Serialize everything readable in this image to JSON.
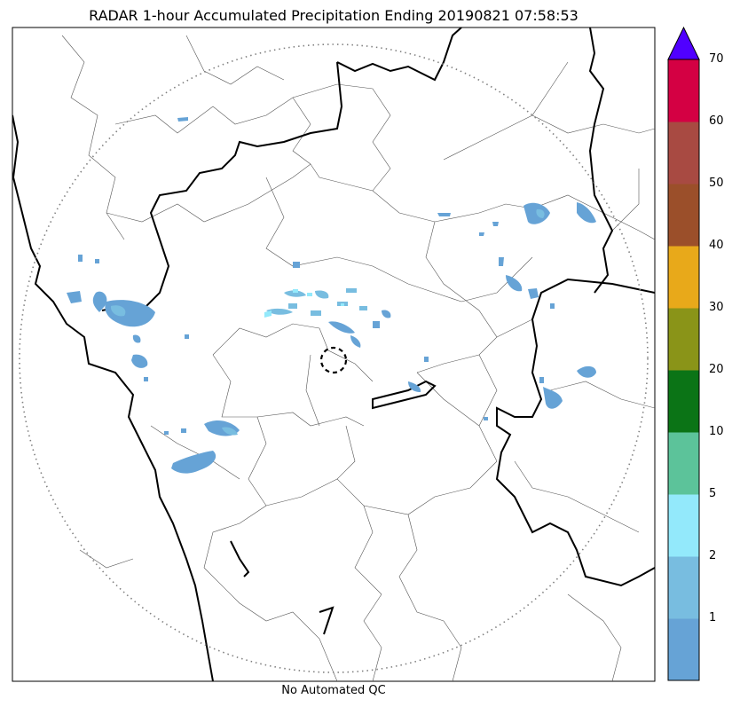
{
  "title": "RADAR 1-hour Accumulated Precipitation Ending 20190821 07:58:53",
  "footer": "No Automated QC",
  "colorbar": {
    "levels": [
      {
        "label": "",
        "color": "#66a3d6"
      },
      {
        "label": "1",
        "color": "#78bde0"
      },
      {
        "label": "2",
        "color": "#93e9fb"
      },
      {
        "label": "5",
        "color": "#5cc39a"
      },
      {
        "label": "10",
        "color": "#0b7416"
      },
      {
        "label": "20",
        "color": "#8a9418"
      },
      {
        "label": "30",
        "color": "#e8a91a"
      },
      {
        "label": "40",
        "color": "#9b4f2a"
      },
      {
        "label": "50",
        "color": "#a84a42"
      },
      {
        "label": "60",
        "color": "#d40043"
      }
    ],
    "top_label": "70",
    "extend_color": "#5000ff"
  },
  "colors": {
    "precip_light": "#66a3d6",
    "precip_mid": "#78bde0",
    "precip_cyan": "#93e9fb",
    "border_thick": "#000000",
    "border_thin": "#555555",
    "range_ring": "#808080"
  }
}
